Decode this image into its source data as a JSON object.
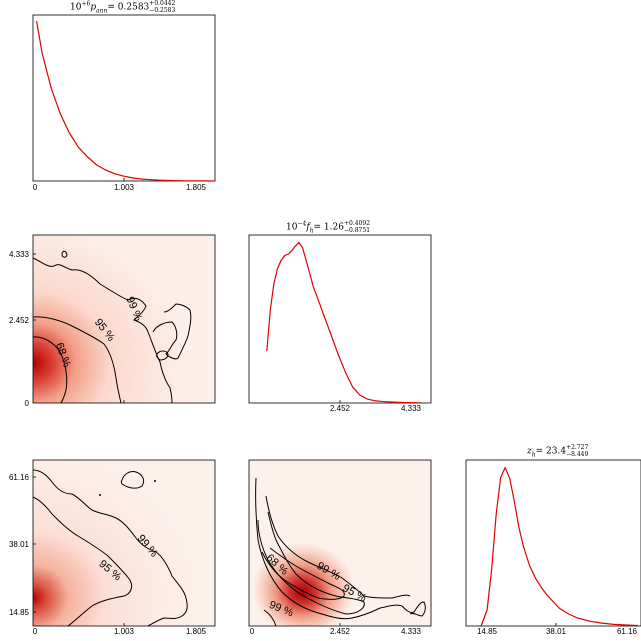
{
  "chart_data": [
    {
      "type": "line",
      "panel": "diag-1",
      "title": {
        "prefix": "10",
        "exp": "+6",
        "var": "p",
        "sub": "ann",
        "eq": "= 0.2583",
        "plus": "+0.0442",
        "minus": "−0.2583"
      },
      "xticks": [
        "0",
        "1.003",
        "1.805"
      ],
      "xlim": [
        0,
        2.0
      ],
      "x": [
        0.04,
        0.1,
        0.2,
        0.3,
        0.4,
        0.5,
        0.6,
        0.7,
        0.8,
        0.9,
        1.0,
        1.1,
        1.2,
        1.3,
        1.4,
        1.5,
        1.6,
        1.7,
        1.8,
        2.0
      ],
      "values": [
        1.0,
        0.8,
        0.58,
        0.42,
        0.3,
        0.21,
        0.15,
        0.1,
        0.068,
        0.045,
        0.03,
        0.019,
        0.012,
        0.008,
        0.005,
        0.003,
        0.002,
        0.001,
        0.0005,
        0.0
      ],
      "color": "#e00000"
    },
    {
      "type": "heatmap",
      "panel": "joint-p-f",
      "xlim": [
        0,
        2.0
      ],
      "ylim": [
        0,
        4.8
      ],
      "xticks": [],
      "yticks": [
        "0",
        "2.452",
        "4.333"
      ],
      "peak": {
        "x": 0.03,
        "y": 1.05
      },
      "contour_labels": [
        "68 %",
        "95 %",
        "99 %"
      ],
      "colors": {
        "peak": "#b30000",
        "background": "#fdf0ea"
      }
    },
    {
      "type": "line",
      "panel": "diag-2",
      "title": {
        "prefix": "10",
        "exp": "−4",
        "var": "f",
        "sub": "h",
        "eq": "= 1.26",
        "plus": "+0.4092",
        "minus": "−0.8751"
      },
      "xticks": [
        "2.452",
        "4.333"
      ],
      "xlim": [
        -0.3,
        4.8
      ],
      "x": [
        0.2,
        0.3,
        0.4,
        0.5,
        0.6,
        0.7,
        0.8,
        0.9,
        1.0,
        1.1,
        1.2,
        1.3,
        1.4,
        1.5,
        1.6,
        1.7,
        1.8,
        1.9,
        2.0,
        2.2,
        2.4,
        2.6,
        2.8,
        3.0,
        3.2,
        3.5,
        4.0,
        4.5
      ],
      "values": [
        0.32,
        0.58,
        0.74,
        0.83,
        0.88,
        0.91,
        0.92,
        0.94,
        0.97,
        0.99,
        0.96,
        0.88,
        0.8,
        0.72,
        0.66,
        0.6,
        0.54,
        0.48,
        0.42,
        0.3,
        0.19,
        0.1,
        0.05,
        0.025,
        0.015,
        0.008,
        0.003,
        0.001
      ],
      "color": "#e00000"
    },
    {
      "type": "heatmap",
      "panel": "joint-p-z",
      "xlim": [
        0,
        2.0
      ],
      "ylim": [
        10.0,
        65.0
      ],
      "xticks": [
        "0",
        "1.003",
        "1.805"
      ],
      "yticks": [
        "14.85",
        "38.01",
        "61.16"
      ],
      "peak": {
        "x": 0.03,
        "y": 18.5
      },
      "contour_labels": [
        "95 %",
        "99 %"
      ],
      "colors": {
        "peak": "#b30000",
        "background": "#fdf0ea"
      }
    },
    {
      "type": "heatmap",
      "panel": "joint-f-z",
      "xlim": [
        0,
        4.8
      ],
      "ylim": [
        10.0,
        65.0
      ],
      "xticks": [
        "0",
        "2.452",
        "4.333"
      ],
      "yticks": [],
      "peak": {
        "x": 1.4,
        "y": 19.0
      },
      "contour_labels": [
        "68 %",
        "99 %",
        "95 %",
        "99 %"
      ],
      "colors": {
        "peak": "#b30000",
        "background": "#fdf0ea"
      }
    },
    {
      "type": "line",
      "panel": "diag-3",
      "title": {
        "prefix": "",
        "exp": "",
        "var": "z",
        "sub": "h",
        "eq": "= 23.4",
        "plus": "+2.727",
        "minus": "−8.449"
      },
      "xticks": [
        "14.85",
        "38.01",
        "61.16"
      ],
      "xlim": [
        7.0,
        65.0
      ],
      "x": [
        12.0,
        14.0,
        15.5,
        17.0,
        18.5,
        20.0,
        21.5,
        23.0,
        24.5,
        26.0,
        28.0,
        30.0,
        32.0,
        34.0,
        36.0,
        38.0,
        41.0,
        44.0,
        48.0,
        52.0,
        56.0,
        60.0,
        64.0
      ],
      "values": [
        0.0,
        0.1,
        0.35,
        0.7,
        0.93,
        0.99,
        0.92,
        0.78,
        0.62,
        0.5,
        0.38,
        0.3,
        0.24,
        0.19,
        0.15,
        0.11,
        0.075,
        0.05,
        0.03,
        0.018,
        0.01,
        0.006,
        0.003
      ],
      "color": "#e00000"
    }
  ]
}
